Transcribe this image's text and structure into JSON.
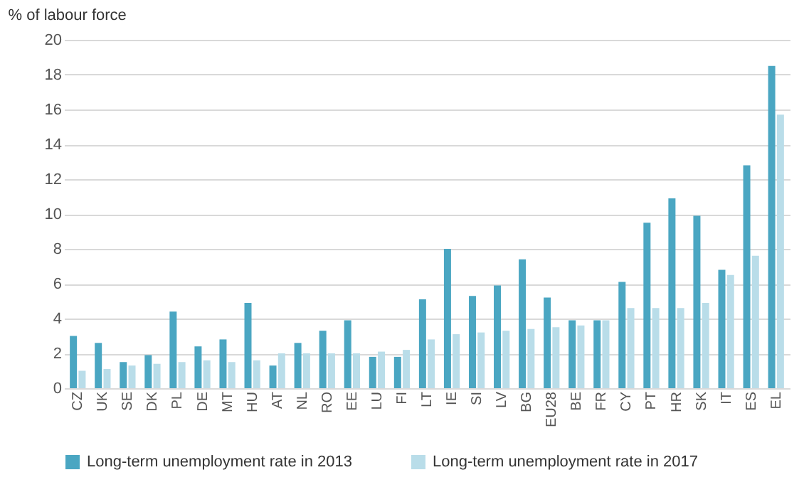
{
  "chart_data": {
    "type": "bar",
    "ylabel": "% of labour force",
    "categories": [
      "CZ",
      "UK",
      "SE",
      "DK",
      "PL",
      "DE",
      "MT",
      "HU",
      "AT",
      "NL",
      "RO",
      "EE",
      "LU",
      "FI",
      "LT",
      "IE",
      "SI",
      "LV",
      "BG",
      "EU28",
      "BE",
      "FR",
      "CY",
      "PT",
      "HR",
      "SK",
      "IT",
      "ES",
      "EL"
    ],
    "series": [
      {
        "name": "Long-term unemployment rate in 2013",
        "color": "#4aa6c2",
        "values": [
          3.0,
          2.6,
          1.5,
          1.9,
          4.4,
          2.4,
          2.8,
          4.9,
          1.3,
          2.6,
          3.3,
          3.9,
          1.8,
          1.8,
          5.1,
          8.0,
          5.3,
          5.9,
          7.4,
          5.2,
          3.9,
          3.9,
          6.1,
          9.5,
          10.9,
          9.9,
          6.8,
          12.8,
          18.5
        ]
      },
      {
        "name": "Long-term unemployment rate in 2017",
        "color": "#b9dde9",
        "values": [
          1.0,
          1.1,
          1.3,
          1.4,
          1.5,
          1.6,
          1.5,
          1.6,
          2.0,
          2.0,
          2.0,
          2.0,
          2.1,
          2.2,
          2.8,
          3.1,
          3.2,
          3.3,
          3.4,
          3.5,
          3.6,
          3.9,
          4.6,
          4.6,
          4.6,
          4.9,
          6.5,
          7.6,
          15.7
        ]
      }
    ],
    "ylim": [
      0,
      20
    ],
    "yticks": [
      0,
      2,
      4,
      6,
      8,
      10,
      12,
      14,
      16,
      18,
      20
    ],
    "grid": "y",
    "legend": "bottom"
  }
}
